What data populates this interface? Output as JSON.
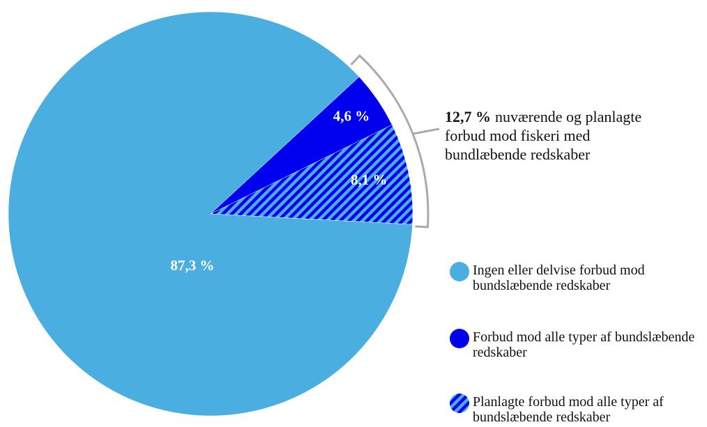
{
  "chart_data": {
    "type": "pie",
    "categories": [
      "Ingen eller delvise forbud mod bundslæbende redskaber",
      "Forbud mod alle typer af bundslæbende redskaber",
      "Planlagte forbud mod alle typer af bundslæbende redskaber"
    ],
    "values": [
      87.3,
      4.6,
      8.1
    ],
    "value_labels": [
      "87,3 %",
      "4,6 %",
      "8,1 %"
    ],
    "colors": [
      "#4aafe0",
      "#0000ee",
      "#0000ee"
    ],
    "patterns": [
      null,
      null,
      "stripes"
    ],
    "annotation": {
      "value": 12.7,
      "label": "12,7 %",
      "lines": [
        "nuværende og planlagte",
        "forbud mod fiskeri med",
        "bundlæbende redskaber"
      ]
    }
  }
}
